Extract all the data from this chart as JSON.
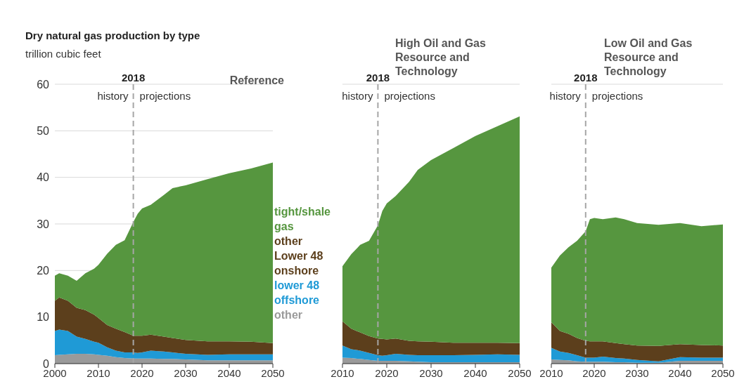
{
  "chart_data": [
    {
      "type": "area",
      "title": "Dry natural gas production by type",
      "subtitle": "Reference",
      "ylabel": "trillion cubic feet",
      "stacked": true,
      "grid": "y",
      "legend": "right",
      "x": [
        2000,
        2001,
        2003,
        2005,
        2007,
        2009,
        2010,
        2012,
        2014,
        2016,
        2018,
        2019,
        2020,
        2022,
        2025,
        2027,
        2030,
        2035,
        2040,
        2045,
        2050
      ],
      "series": [
        {
          "name": "other",
          "color": "#9a9a9a",
          "values": [
            1.8,
            1.9,
            2.0,
            2.1,
            2.1,
            2.0,
            1.9,
            1.7,
            1.4,
            1.2,
            1.1,
            1.1,
            1.1,
            1.1,
            1.0,
            1.0,
            0.9,
            0.7,
            0.7,
            0.7,
            0.7
          ]
        },
        {
          "name": "lower 48 offshore",
          "color": "#1f9ad6",
          "values": [
            5.2,
            5.4,
            5.0,
            3.7,
            3.2,
            2.7,
            2.6,
            1.8,
            1.4,
            1.2,
            1.3,
            1.2,
            1.3,
            1.7,
            1.6,
            1.4,
            1.2,
            1.2,
            1.3,
            1.3,
            1.3
          ]
        },
        {
          "name": "other Lower 48 onshore",
          "color": "#5c3f1c",
          "values": [
            6.5,
            6.9,
            6.5,
            6.2,
            6.2,
            5.8,
            5.3,
            4.8,
            4.7,
            4.4,
            3.6,
            3.7,
            3.6,
            3.4,
            3.2,
            3.1,
            3.0,
            2.9,
            2.8,
            2.7,
            2.4
          ]
        },
        {
          "name": "tight/shale gas",
          "color": "#56963f",
          "values": [
            5.4,
            5.2,
            5.4,
            5.8,
            7.9,
            9.9,
            11.4,
            15.3,
            18.0,
            19.7,
            24.4,
            26.2,
            27.3,
            27.9,
            30.4,
            32.2,
            33.2,
            34.8,
            36.1,
            37.2,
            38.8
          ]
        }
      ],
      "xlim": [
        2000,
        2050
      ],
      "xticks": [
        2000,
        2010,
        2020,
        2030,
        2040,
        2050
      ],
      "ylim": [
        0,
        60
      ],
      "yticks": [
        0,
        10,
        20,
        30,
        40,
        50,
        60
      ],
      "ref_lines": [
        {
          "axis": "x",
          "value": 2018,
          "label": "2018",
          "line_style": "dashed",
          "color": "#a6a6a6"
        }
      ],
      "annotations": [
        "history",
        "projections"
      ]
    },
    {
      "type": "area",
      "title": "High Oil and Gas Resource and Technology",
      "stacked": true,
      "grid": "y",
      "tick_labels": "x",
      "x": [
        2010,
        2012,
        2014,
        2016,
        2018,
        2019,
        2020,
        2022,
        2025,
        2027,
        2030,
        2035,
        2040,
        2045,
        2050
      ],
      "series": [
        {
          "color": "#9a9a9a",
          "values": [
            1.3,
            1.2,
            1.0,
            0.8,
            0.6,
            0.6,
            0.6,
            0.6,
            0.5,
            0.4,
            0.3,
            0.3,
            0.3,
            0.3,
            0.3
          ]
        },
        {
          "color": "#1f9ad6",
          "values": [
            2.6,
            1.9,
            1.8,
            1.5,
            1.2,
            1.1,
            1.2,
            1.5,
            1.4,
            1.4,
            1.5,
            1.5,
            1.6,
            1.7,
            1.6
          ]
        },
        {
          "color": "#5c3f1c",
          "values": [
            5.2,
            4.4,
            3.9,
            3.6,
            3.6,
            3.6,
            3.4,
            3.3,
            3.0,
            3.0,
            2.9,
            2.7,
            2.6,
            2.5,
            2.5
          ]
        },
        {
          "color": "#56963f",
          "values": [
            11.8,
            16.0,
            18.8,
            20.5,
            24.3,
            27.5,
            29.2,
            30.6,
            34.1,
            36.8,
            39.0,
            41.8,
            44.4,
            46.5,
            48.7
          ]
        }
      ],
      "xlim": [
        2010,
        2050
      ],
      "xticks": [
        2010,
        2020,
        2030,
        2040,
        2050
      ],
      "ylim": [
        0,
        60
      ],
      "yticks": [
        0,
        10,
        20,
        30,
        40,
        50,
        60
      ],
      "ref_lines": [
        {
          "axis": "x",
          "value": 2018,
          "label": "2018",
          "line_style": "dashed",
          "color": "#a6a6a6"
        }
      ],
      "annotations": [
        "history",
        "projections"
      ]
    },
    {
      "type": "area",
      "title": "Low Oil and Gas Resource and Technology",
      "stacked": true,
      "grid": "y",
      "tick_labels": "x",
      "x": [
        2010,
        2012,
        2014,
        2016,
        2018,
        2019,
        2020,
        2022,
        2025,
        2027,
        2030,
        2035,
        2040,
        2045,
        2050
      ],
      "series": [
        {
          "color": "#9a9a9a",
          "values": [
            0.9,
            0.8,
            0.7,
            0.5,
            0.4,
            0.4,
            0.4,
            0.4,
            0.3,
            0.3,
            0.2,
            0.2,
            0.6,
            0.6,
            0.6
          ]
        },
        {
          "color": "#1f9ad6",
          "values": [
            2.5,
            1.8,
            1.6,
            1.3,
            0.9,
            0.9,
            0.9,
            1.1,
            0.9,
            0.8,
            0.6,
            0.3,
            0.8,
            0.7,
            0.7
          ]
        },
        {
          "color": "#5c3f1c",
          "values": [
            5.5,
            4.4,
            4.1,
            3.7,
            3.6,
            3.5,
            3.5,
            3.3,
            3.2,
            3.1,
            3.1,
            3.3,
            2.8,
            2.7,
            2.6
          ]
        },
        {
          "color": "#56963f",
          "values": [
            11.7,
            16.2,
            18.6,
            20.9,
            23.5,
            26.2,
            26.5,
            26.2,
            27.0,
            26.8,
            26.3,
            26.0,
            26.0,
            25.5,
            26.0
          ]
        }
      ],
      "xlim": [
        2010,
        2050
      ],
      "xticks": [
        2010,
        2020,
        2030,
        2040,
        2050
      ],
      "ylim": [
        0,
        60
      ],
      "yticks": [
        0,
        10,
        20,
        30,
        40,
        50,
        60
      ],
      "ref_lines": [
        {
          "axis": "x",
          "value": 2018,
          "label": "2018",
          "line_style": "dashed",
          "color": "#a6a6a6"
        }
      ],
      "annotations": [
        "history",
        "projections"
      ]
    }
  ]
}
